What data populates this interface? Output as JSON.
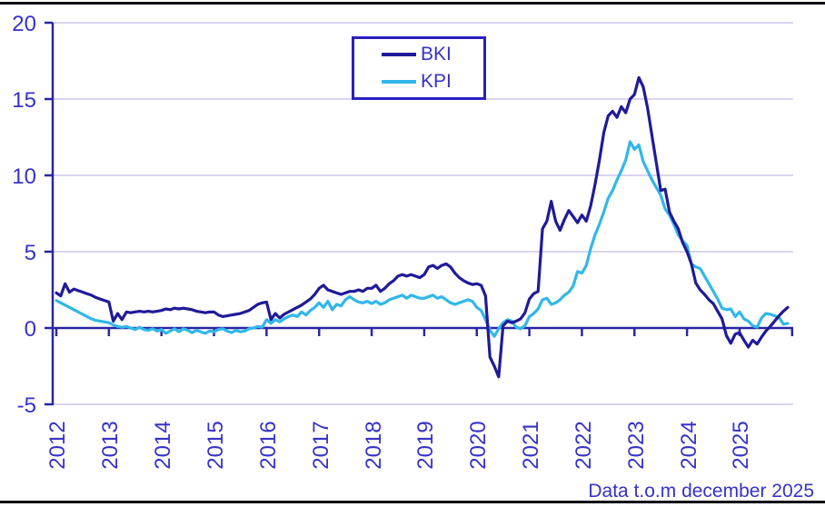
{
  "footer": {
    "note": "Data t.o.m december 2025"
  },
  "chart_data": {
    "type": "line",
    "title": "",
    "xlabel": "",
    "ylabel": "",
    "x_start": "2012-01",
    "x_end": "2025-12",
    "frequency": "monthly",
    "points_per_series": 168,
    "ylim": [
      -5,
      20
    ],
    "grid": true,
    "legend_position": "top-center",
    "ytick_values": [
      20,
      15,
      10,
      5,
      0,
      -5
    ],
    "ytick_labels": [
      "20",
      "15",
      "10",
      "5",
      "0",
      "-5"
    ],
    "xtick_labels": [
      "2012",
      "2013",
      "2014",
      "2015",
      "2016",
      "2017",
      "2018",
      "2019",
      "2020",
      "2021",
      "2022",
      "2023",
      "2024",
      "2025"
    ],
    "style": {
      "axis_color": "#2a26a3",
      "grid_color": "#d9d4f0",
      "label_color": "#3732c8",
      "legend_border_color": "#2b1fc0",
      "page_border_color": "#0b0b12"
    },
    "series": [
      {
        "name": "BKI",
        "color": "#1f1a99",
        "values": [
          2.3,
          2.1,
          2.9,
          2.35,
          2.55,
          2.45,
          2.35,
          2.25,
          2.15,
          2.0,
          1.9,
          1.8,
          1.7,
          0.45,
          0.95,
          0.55,
          1.05,
          1.0,
          1.05,
          1.1,
          1.05,
          1.1,
          1.05,
          1.1,
          1.15,
          1.25,
          1.2,
          1.3,
          1.25,
          1.3,
          1.25,
          1.2,
          1.1,
          1.05,
          1.0,
          1.05,
          1.05,
          0.85,
          0.75,
          0.8,
          0.85,
          0.9,
          0.95,
          1.05,
          1.15,
          1.35,
          1.55,
          1.65,
          1.7,
          0.55,
          0.95,
          0.65,
          0.9,
          1.05,
          1.2,
          1.35,
          1.5,
          1.7,
          1.9,
          2.2,
          2.6,
          2.8,
          2.5,
          2.4,
          2.3,
          2.2,
          2.3,
          2.4,
          2.4,
          2.5,
          2.4,
          2.6,
          2.6,
          2.8,
          2.4,
          2.6,
          2.9,
          3.1,
          3.4,
          3.5,
          3.4,
          3.5,
          3.4,
          3.3,
          3.5,
          4.0,
          4.1,
          3.9,
          4.1,
          4.2,
          4.0,
          3.6,
          3.3,
          3.1,
          2.95,
          2.85,
          2.9,
          2.8,
          2.1,
          -1.9,
          -2.5,
          -3.2,
          0.15,
          0.45,
          0.35,
          0.45,
          0.6,
          1.0,
          1.9,
          2.25,
          2.4,
          6.5,
          7.0,
          8.3,
          7.0,
          6.4,
          7.1,
          7.7,
          7.3,
          6.9,
          7.4,
          7.0,
          8.0,
          9.4,
          11.0,
          12.8,
          13.9,
          14.2,
          13.8,
          14.5,
          14.1,
          15.0,
          15.3,
          16.4,
          15.8,
          14.4,
          12.6,
          10.8,
          9.0,
          9.1,
          7.6,
          7.0,
          6.5,
          5.6,
          5.0,
          4.2,
          2.95,
          2.5,
          2.2,
          1.85,
          1.6,
          1.1,
          0.6,
          -0.5,
          -1.0,
          -0.4,
          -0.3,
          -0.8,
          -1.25,
          -0.8,
          -1.05,
          -0.6,
          -0.2,
          0.1,
          0.45,
          0.8,
          1.1,
          1.35
        ]
      },
      {
        "name": "KPI",
        "color": "#31b7e9",
        "values": [
          1.8,
          1.65,
          1.5,
          1.35,
          1.2,
          1.05,
          0.9,
          0.75,
          0.6,
          0.5,
          0.45,
          0.4,
          0.35,
          0.2,
          0.1,
          0.05,
          0.1,
          0.0,
          -0.1,
          0.05,
          -0.1,
          -0.15,
          -0.05,
          -0.2,
          -0.1,
          -0.35,
          -0.2,
          -0.05,
          -0.25,
          -0.05,
          -0.15,
          -0.3,
          -0.15,
          -0.25,
          -0.35,
          -0.2,
          -0.25,
          -0.1,
          -0.05,
          -0.2,
          -0.3,
          -0.15,
          -0.25,
          -0.2,
          -0.05,
          0.0,
          0.1,
          0.05,
          0.55,
          0.3,
          0.55,
          0.4,
          0.6,
          0.75,
          0.85,
          0.75,
          1.05,
          0.85,
          1.15,
          1.35,
          1.65,
          1.35,
          1.75,
          1.2,
          1.55,
          1.45,
          1.85,
          2.05,
          1.85,
          1.7,
          1.65,
          1.75,
          1.6,
          1.75,
          1.55,
          1.65,
          1.85,
          1.95,
          2.05,
          2.15,
          1.95,
          2.15,
          2.05,
          1.95,
          1.95,
          2.05,
          2.15,
          1.95,
          2.05,
          1.85,
          1.65,
          1.55,
          1.65,
          1.75,
          1.85,
          1.75,
          1.35,
          1.15,
          0.55,
          -0.15,
          -0.55,
          -0.05,
          0.35,
          0.55,
          0.45,
          0.05,
          -0.05,
          0.15,
          0.75,
          0.95,
          1.25,
          1.85,
          1.95,
          1.55,
          1.65,
          1.85,
          2.15,
          2.35,
          2.75,
          3.7,
          3.6,
          4.1,
          5.2,
          6.1,
          6.8,
          7.6,
          8.5,
          9.0,
          9.7,
          10.3,
          11.0,
          12.2,
          11.7,
          12.0,
          10.9,
          10.3,
          9.7,
          9.2,
          8.7,
          7.8,
          7.4,
          6.8,
          6.1,
          5.7,
          5.4,
          4.2,
          4.0,
          3.9,
          3.4,
          2.9,
          2.4,
          1.9,
          1.3,
          1.2,
          1.25,
          0.75,
          1.05,
          0.6,
          0.45,
          0.15,
          0.05,
          0.65,
          0.95,
          0.9,
          0.8,
          0.7,
          0.25,
          0.3
        ]
      }
    ]
  }
}
